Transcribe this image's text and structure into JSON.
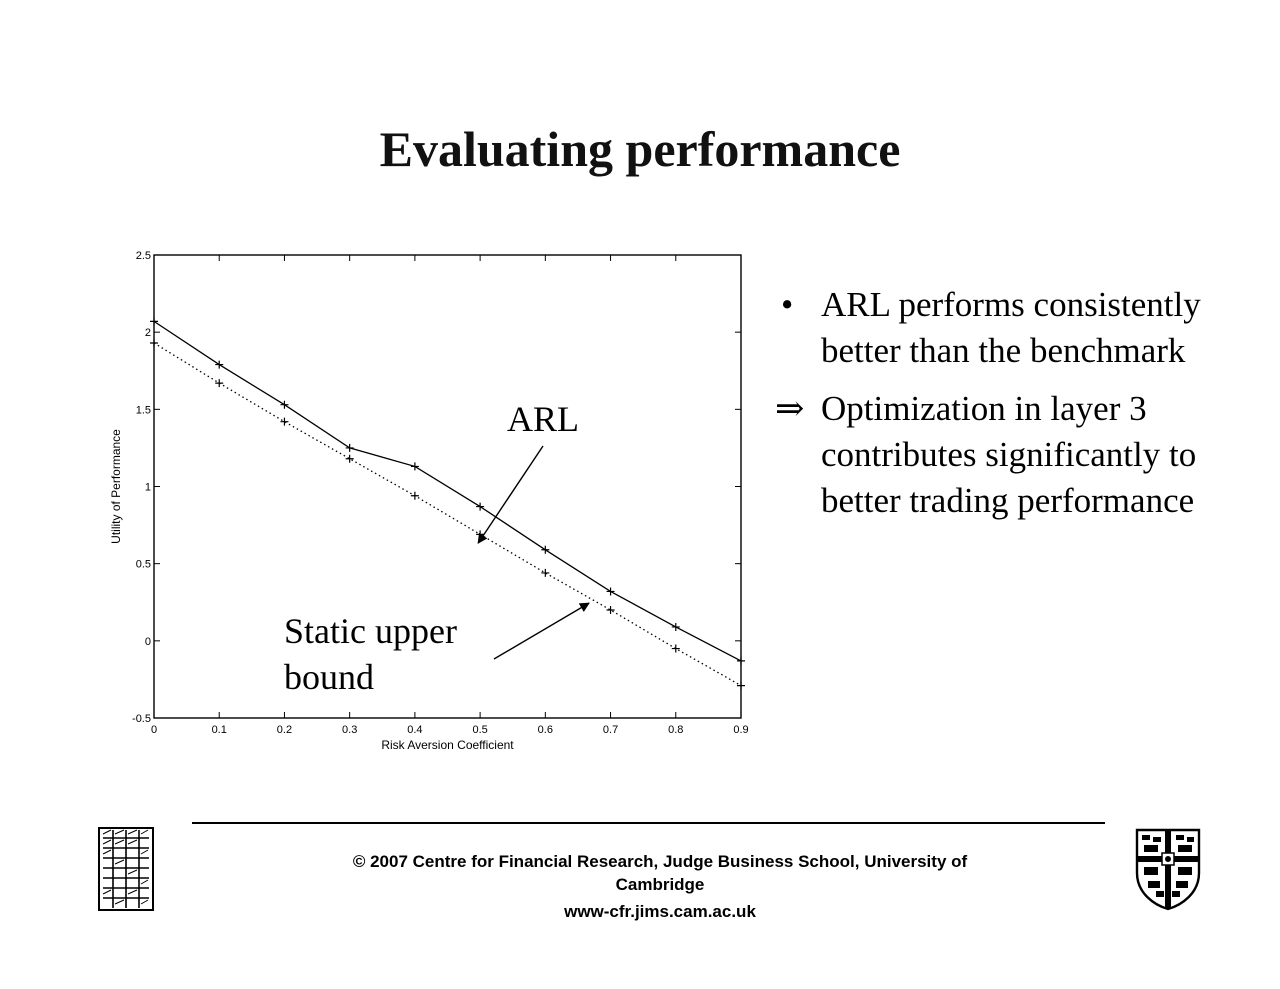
{
  "slide": {
    "title": "Evaluating performance",
    "bullets": [
      {
        "marker": "•",
        "text": "ARL performs consistently better than the benchmark"
      },
      {
        "marker": "⇒",
        "text": "Optimization in layer 3 contributes significantly to better trading performance"
      }
    ]
  },
  "chart_data": {
    "type": "line",
    "xlabel": "Risk Aversion Coefficient",
    "ylabel": "Utility of Performance",
    "xlim": [
      0,
      0.9
    ],
    "ylim": [
      -0.5,
      2.5
    ],
    "xticks": [
      "0",
      "0.1",
      "0.2",
      "0.3",
      "0.4",
      "0.5",
      "0.6",
      "0.7",
      "0.8",
      "0.9"
    ],
    "yticks": [
      "-0.5",
      "0",
      "0.5",
      "1",
      "1.5",
      "2",
      "2.5"
    ],
    "x": [
      0,
      0.1,
      0.2,
      0.3,
      0.4,
      0.5,
      0.6,
      0.7,
      0.8,
      0.9
    ],
    "series": [
      {
        "line": "solid",
        "marker": "+",
        "values": [
          2.07,
          1.79,
          1.53,
          1.25,
          1.13,
          0.87,
          0.59,
          0.32,
          0.09,
          -0.13
        ]
      },
      {
        "line": "dotted",
        "marker": "+",
        "values": [
          1.93,
          1.67,
          1.42,
          1.18,
          0.94,
          0.69,
          0.44,
          0.2,
          -0.05,
          -0.29
        ]
      }
    ],
    "annotations": [
      {
        "lines": [
          "ARL"
        ],
        "points_to": {
          "x": 0.54,
          "y": 0.75
        }
      },
      {
        "lines": [
          "Static upper",
          "bound"
        ],
        "points_to": {
          "x": 0.67,
          "y": 0.27
        }
      }
    ],
    "grid": false
  },
  "footer": {
    "line1": "© 2007 Centre for Financial Research,  Judge Business School,  University of",
    "line2": "Cambridge",
    "url": "www-cfr.jims.cam.ac.uk"
  }
}
